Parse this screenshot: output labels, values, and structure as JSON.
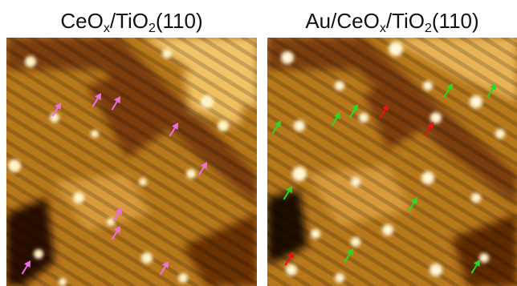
{
  "panels": [
    {
      "id": "left",
      "title_parts": {
        "p1": "CeO",
        "s1": "x",
        "p2": "/TiO",
        "s2": "2",
        "p3": "(110)"
      },
      "arrow_color": "#ee6ee8",
      "arrows": [
        {
          "tip": [
            76,
            128
          ],
          "color": "pink"
        },
        {
          "tip": [
            126,
            116
          ],
          "color": "pink"
        },
        {
          "tip": [
            150,
            120
          ],
          "color": "pink"
        },
        {
          "tip": [
            222,
            153
          ],
          "color": "pink"
        },
        {
          "tip": [
            258,
            202
          ],
          "color": "pink"
        },
        {
          "tip": [
            152,
            259
          ],
          "color": "pink"
        },
        {
          "tip": [
            150,
            282
          ],
          "color": "pink"
        },
        {
          "tip": [
            38,
            325
          ],
          "color": "pink"
        },
        {
          "tip": [
            210,
            326
          ],
          "color": "pink"
        }
      ]
    },
    {
      "id": "right",
      "title_parts": {
        "p1": "Au/CeO",
        "s1": "x",
        "p2": "/TiO",
        "s2": "2",
        "p3": "(110)"
      },
      "arrow_color_green": "#22dd22",
      "arrow_color_red": "#ee1111",
      "arrows": [
        {
          "tip": [
            350,
            150
          ],
          "color": "green"
        },
        {
          "tip": [
            424,
            140
          ],
          "color": "green"
        },
        {
          "tip": [
            446,
            130
          ],
          "color": "green"
        },
        {
          "tip": [
            484,
            130
          ],
          "color": "red"
        },
        {
          "tip": [
            540,
            152
          ],
          "color": "red"
        },
        {
          "tip": [
            564,
            104
          ],
          "color": "green"
        },
        {
          "tip": [
            618,
            104
          ],
          "color": "green"
        },
        {
          "tip": [
            364,
            232
          ],
          "color": "green"
        },
        {
          "tip": [
            520,
            246
          ],
          "color": "green"
        },
        {
          "tip": [
            366,
            314
          ],
          "color": "red"
        },
        {
          "tip": [
            440,
            310
          ],
          "color": "green"
        },
        {
          "tip": [
            598,
            324
          ],
          "color": "green"
        }
      ]
    }
  ]
}
